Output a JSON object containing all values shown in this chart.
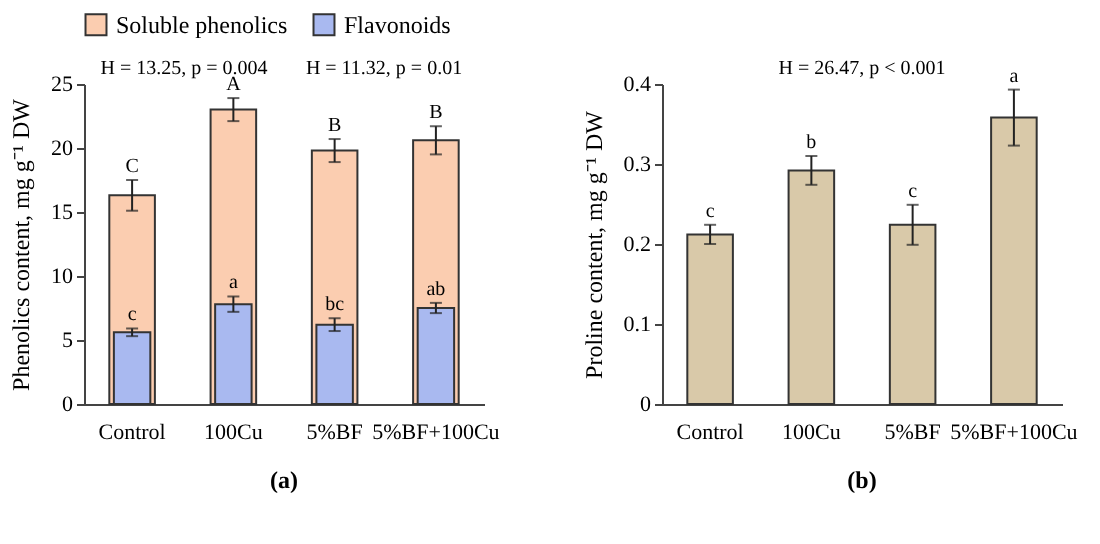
{
  "chart_data": [
    {
      "type": "bar",
      "title": "(a)",
      "ylabel": "Phenolics content, mg g⁻¹ DW",
      "categories": [
        "Control",
        "100Cu",
        "5%BF",
        "5%BF+100Cu"
      ],
      "series": [
        {
          "name": "Soluble phenolics",
          "color": "#fbcdb0",
          "values": [
            16.3,
            23.0,
            19.8,
            20.6
          ],
          "errors": [
            1.2,
            0.9,
            0.9,
            1.1
          ]
        },
        {
          "name": "Flavonoids",
          "color": "#a9b9f0",
          "values": [
            5.6,
            7.8,
            6.2,
            7.5
          ],
          "errors": [
            0.3,
            0.6,
            0.5,
            0.4
          ]
        }
      ],
      "ylim": [
        0,
        25
      ],
      "yticks": [
        0,
        5,
        10,
        15,
        20,
        25
      ],
      "grid": false,
      "legend": "top",
      "annotations": [
        "H = 13.25, p = 0.004",
        "H = 11.32, p = 0.01",
        {
          "text": "C",
          "x": "Control",
          "y": 17.5
        },
        {
          "text": "A",
          "x": "100Cu",
          "y": 23.9
        },
        {
          "text": "B",
          "x": "5%BF",
          "y": 20.7
        },
        {
          "text": "B",
          "x": "5%BF+100Cu",
          "y": 21.7
        },
        {
          "text": "c",
          "x": "Control",
          "y": 5.9
        },
        {
          "text": "a",
          "x": "100Cu",
          "y": 8.4
        },
        {
          "text": "bc",
          "x": "5%BF",
          "y": 6.7
        },
        {
          "text": "ab",
          "x": "5%BF+100Cu",
          "y": 7.9
        }
      ]
    },
    {
      "type": "bar",
      "title": "(b)",
      "ylabel": "Proline content, mg g⁻¹ DW",
      "categories": [
        "Control",
        "100Cu",
        "5%BF",
        "5%BF+100Cu"
      ],
      "series": [
        {
          "color": "#d9c9a9",
          "values": [
            0.212,
            0.292,
            0.224,
            0.358
          ],
          "errors": [
            0.012,
            0.018,
            0.025,
            0.035
          ]
        }
      ],
      "ylim": [
        0,
        0.4
      ],
      "yticks": [
        0,
        0.1,
        0.2,
        0.3,
        0.4
      ],
      "grid": false,
      "legend": false,
      "annotations": [
        "H = 26.47, p < 0.001",
        {
          "text": "c",
          "x": "Control",
          "y": 0.224
        },
        {
          "text": "b",
          "x": "100Cu",
          "y": 0.31
        },
        {
          "text": "c",
          "x": "5%BF",
          "y": 0.249
        },
        {
          "text": "a",
          "x": "5%BF+100Cu",
          "y": 0.393
        }
      ]
    }
  ]
}
